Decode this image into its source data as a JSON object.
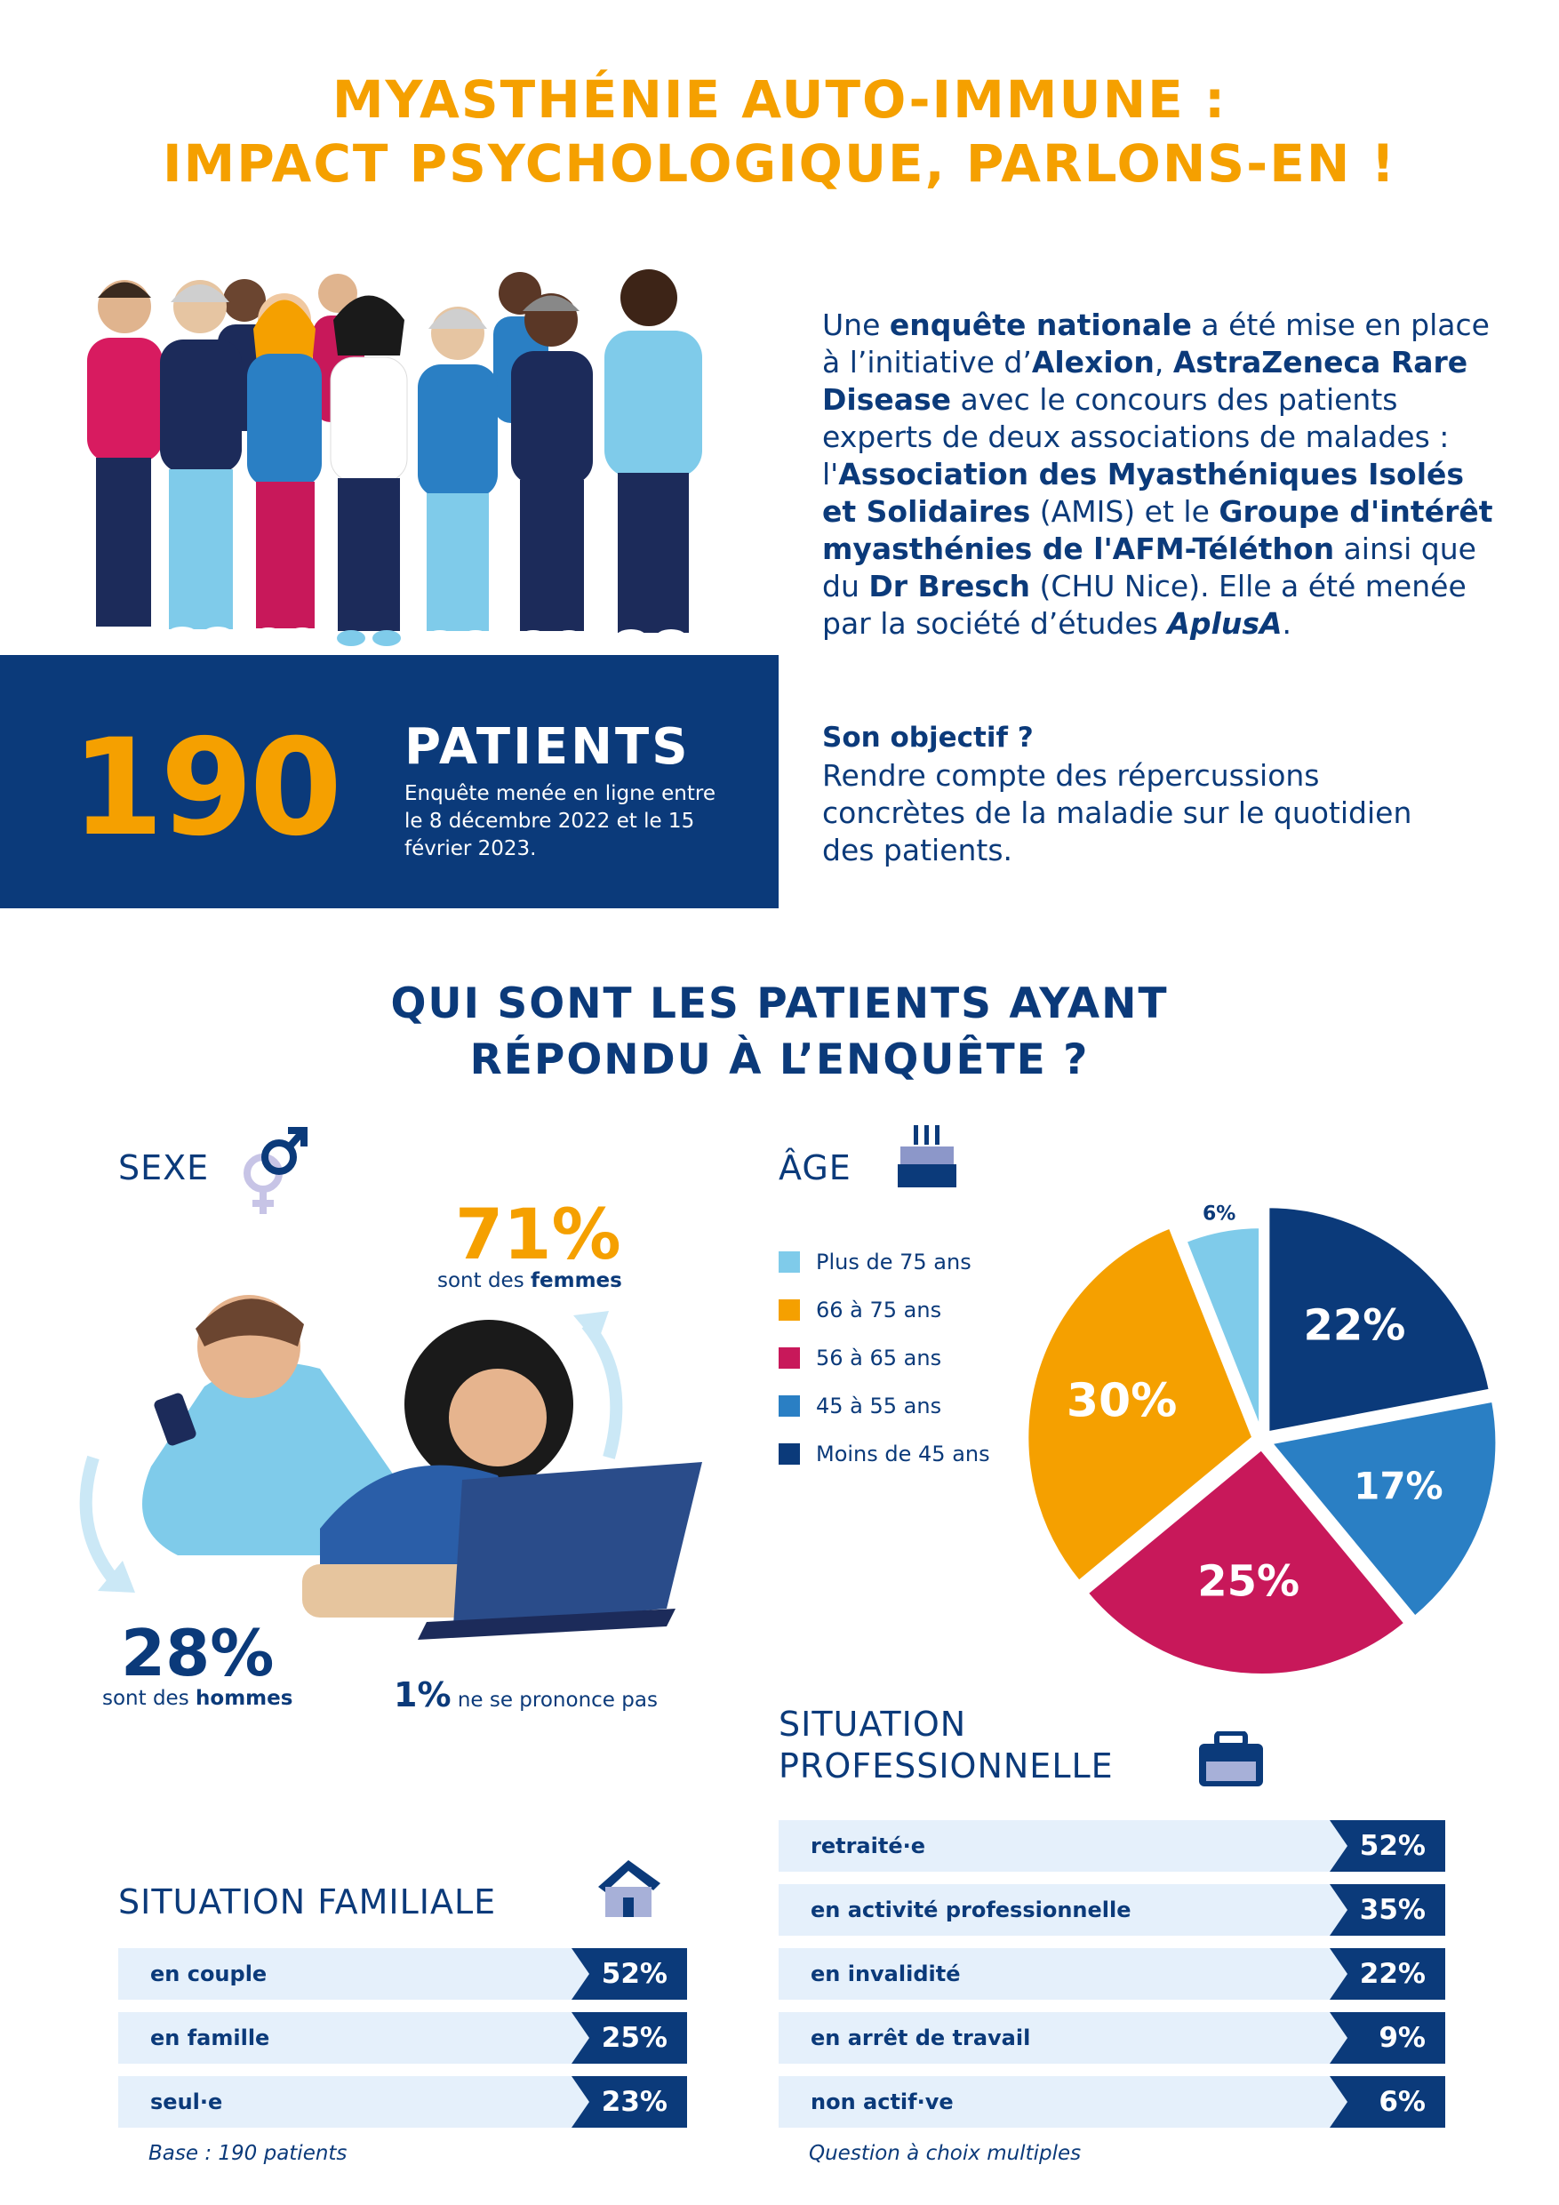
{
  "header": {
    "title_line1": "MYASTHÉNIE AUTO-IMMUNE :",
    "title_line2": "IMPACT PSYCHOLOGIQUE, PARLONS-EN !"
  },
  "intro": {
    "segments": [
      {
        "text": "Une ",
        "bold": false
      },
      {
        "text": "enquête nationale",
        "bold": true
      },
      {
        "text": " a été mise en place à l’initiative d’",
        "bold": false
      },
      {
        "text": "Alexion",
        "bold": true
      },
      {
        "text": ", ",
        "bold": false
      },
      {
        "text": "AstraZeneca Rare Disease",
        "bold": true
      },
      {
        "text": " avec le concours des patients experts de deux associations de malades : l'",
        "bold": false
      },
      {
        "text": "Association des Myasthéniques Isolés et Solidaires",
        "bold": true
      },
      {
        "text": " (AMIS) et le ",
        "bold": false
      },
      {
        "text": "Groupe d'intérêt myasthénies de l'AFM-Téléthon",
        "bold": true
      },
      {
        "text": " ainsi que du ",
        "bold": false
      },
      {
        "text": "Dr Bresch",
        "bold": true
      },
      {
        "text": " (CHU Nice). Elle a été menée par la société d’études ",
        "bold": false
      },
      {
        "text": "AplusA",
        "bold": true,
        "italic": true
      },
      {
        "text": ".",
        "bold": false
      }
    ]
  },
  "objective": {
    "title": "Son objectif ?",
    "text": "Rendre compte des répercussions concrètes de la maladie sur le quotidien des patients."
  },
  "banner": {
    "count": "190",
    "label": "PATIENTS",
    "sub": "Enquête menée en ligne entre le 8 décembre 2022 et le 15 février 2023."
  },
  "section": {
    "title_line1": "QUI SONT LES PATIENTS AYANT",
    "title_line2": "RÉPONDU À L’ENQUÊTE ?"
  },
  "sexe": {
    "title": "SEXE",
    "women_pct": "71%",
    "women_caption_pre": "sont des ",
    "women_caption_bold": "femmes",
    "men_pct": "28%",
    "men_caption_pre": "sont des ",
    "men_caption_bold": "hommes",
    "other_pct": "1%",
    "other_caption": " ne se prononce pas"
  },
  "age": {
    "title": "ÂGE"
  },
  "chart_data": {
    "type": "pie",
    "title": "ÂGE",
    "legend_position": "left",
    "series": [
      {
        "name": "Moins de 45 ans",
        "value": 22,
        "label": "22%",
        "color": "#0b3a7a"
      },
      {
        "name": "45 à 55 ans",
        "value": 17,
        "label": "17%",
        "color": "#2a7fc4"
      },
      {
        "name": "56 à 65 ans",
        "value": 25,
        "label": "25%",
        "color": "#c8185a"
      },
      {
        "name": "66 à 75 ans",
        "value": 30,
        "label": "30%",
        "color": "#f5a000"
      },
      {
        "name": "Plus de 75 ans",
        "value": 6,
        "label": "6%",
        "color": "#7fcbea"
      }
    ],
    "legend_order": [
      "Plus de 75 ans",
      "66 à 75 ans",
      "56 à 65 ans",
      "45 à 55 ans",
      "Moins de 45 ans"
    ]
  },
  "famille": {
    "title": "SITUATION FAMILIALE",
    "rows": [
      {
        "label": "en couple",
        "value": "52%"
      },
      {
        "label": "en famille",
        "value": "25%"
      },
      {
        "label": "seul·e",
        "value": "23%"
      }
    ],
    "note": "Base : 190 patients"
  },
  "pro": {
    "title_line1": "SITUATION",
    "title_line2": "PROFESSIONNELLE",
    "rows": [
      {
        "label": "retraité·e",
        "value": "52%"
      },
      {
        "label": "en activité professionnelle",
        "value": "35%"
      },
      {
        "label": "en invalidité",
        "value": "22%"
      },
      {
        "label": "en arrêt de travail",
        "value": "9%"
      },
      {
        "label": "non actif·ve",
        "value": "6%"
      }
    ],
    "note": "Question à choix multiples"
  },
  "colors": {
    "orange": "#f5a000",
    "navy": "#0b3a7a",
    "light_row": "#e5f0fb"
  }
}
